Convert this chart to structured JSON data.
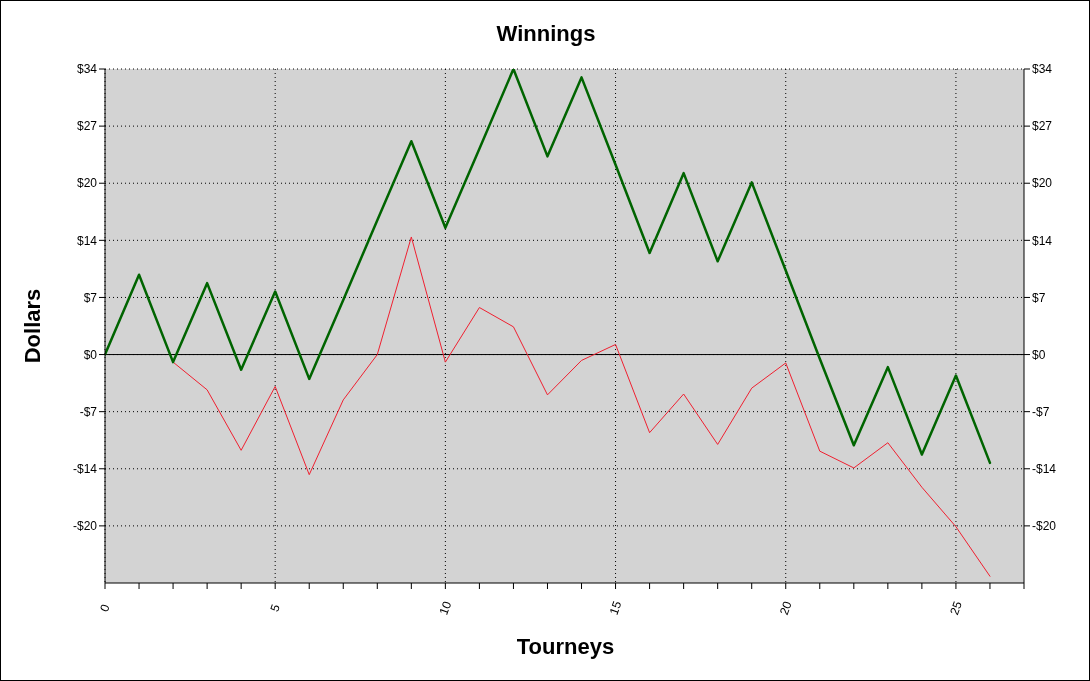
{
  "chart_data": {
    "type": "line",
    "title": "Winnings",
    "xlabel": "Tourneys",
    "ylabel": "Dollars",
    "x": [
      0,
      1,
      2,
      3,
      4,
      5,
      6,
      7,
      8,
      9,
      10,
      11,
      12,
      13,
      14,
      15,
      16,
      17,
      18,
      19,
      20,
      21,
      22,
      23,
      24,
      25,
      26
    ],
    "series": [
      {
        "color": "#f02030",
        "values": [
          null,
          null,
          -0.9,
          -4.2,
          -11.4,
          -3.8,
          -14.3,
          -5.4,
          0,
          14.0,
          -0.9,
          5.6,
          3.3,
          -4.8,
          -0.7,
          1.2,
          -9.3,
          -4.7,
          -10.7,
          -4.0,
          -1.0,
          -11.5,
          -13.5,
          -10.5,
          -15.8,
          -20.5,
          -26.4
        ]
      },
      {
        "color": "#006400",
        "values": [
          0,
          9.5,
          -0.9,
          8.5,
          -1.8,
          7.5,
          -2.9,
          6.5,
          16.0,
          25.4,
          15.1,
          24.5,
          34.0,
          23.6,
          33.0,
          22.6,
          12.1,
          21.6,
          11.1,
          20.5,
          10.0,
          -0.5,
          -10.8,
          -1.5,
          -11.9,
          -2.5,
          -12.9
        ]
      }
    ],
    "xlim": [
      0,
      27
    ],
    "xticks": [
      0,
      {
        "value": 1,
        "label": null
      },
      {
        "value": 2,
        "label": null
      },
      {
        "value": 3,
        "label": null
      },
      {
        "value": 4,
        "label": null
      },
      5,
      {
        "value": 6,
        "label": null
      },
      {
        "value": 7,
        "label": null
      },
      {
        "value": 8,
        "label": null
      },
      {
        "value": 9,
        "label": null
      },
      10,
      {
        "value": 11,
        "label": null
      },
      {
        "value": 12,
        "label": null
      },
      {
        "value": 13,
        "label": null
      },
      {
        "value": 14,
        "label": null
      },
      15,
      {
        "value": 16,
        "label": null
      },
      {
        "value": 17,
        "label": null
      },
      {
        "value": 18,
        "label": null
      },
      {
        "value": 19,
        "label": null
      },
      20,
      {
        "value": 21,
        "label": null
      },
      {
        "value": 22,
        "label": null
      },
      {
        "value": 23,
        "label": null
      },
      {
        "value": 24,
        "label": null
      },
      25,
      {
        "value": 26,
        "label": null
      },
      {
        "value": 27,
        "label": null
      }
    ],
    "ylim": [
      -27.2,
      34
    ],
    "yticks": [
      {
        "value": -20.4,
        "label": "-$20"
      },
      {
        "value": -13.6,
        "label": "-$14"
      },
      {
        "value": -6.8,
        "label": "-$7"
      },
      {
        "value": 0,
        "label": "$0"
      },
      {
        "value": 6.8,
        "label": "$7"
      },
      {
        "value": 13.6,
        "label": "$14"
      },
      {
        "value": 20.4,
        "label": "$20"
      },
      {
        "value": 27.2,
        "label": "$27"
      },
      {
        "value": 34,
        "label": "$34"
      }
    ],
    "y2lim": [
      -27.2,
      34
    ],
    "y2ticks": [
      {
        "value": -20.4,
        "label": "-$20"
      },
      {
        "value": -13.6,
        "label": "-$14"
      },
      {
        "value": -6.8,
        "label": "-$7"
      },
      {
        "value": 0,
        "label": "$0"
      },
      {
        "value": 6.8,
        "label": "$7"
      },
      {
        "value": 13.6,
        "label": "$14"
      },
      {
        "value": 20.4,
        "label": "$20"
      },
      {
        "value": 27.2,
        "label": "$27"
      },
      {
        "value": 34,
        "label": "$34"
      }
    ],
    "grid": true,
    "ref_lines": [
      {
        "axis": "y",
        "value": 0,
        "color": "#000000"
      }
    ]
  }
}
